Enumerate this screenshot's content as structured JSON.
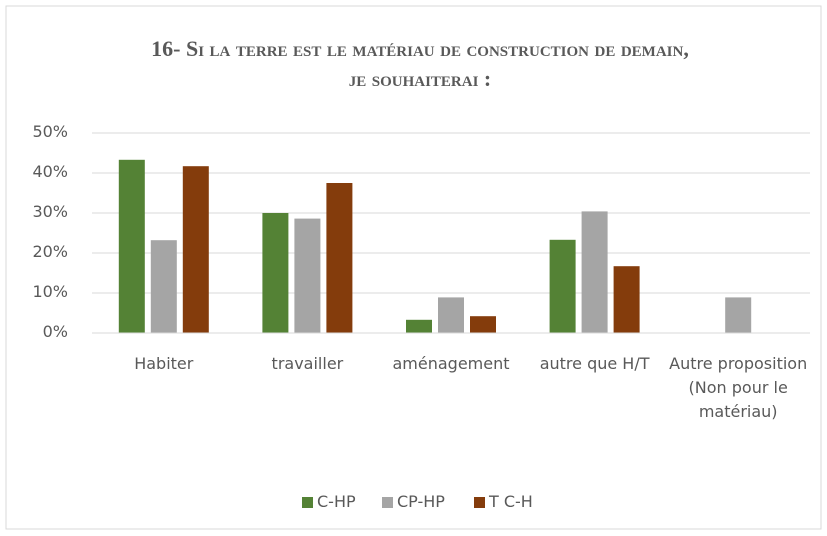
{
  "chart_data": {
    "type": "bar",
    "title": "16- Si la terre est le matériau de construction de demain, je souhaiterai :",
    "categories": [
      "Habiter",
      "travailler",
      "aménagement",
      "autre que H/T",
      "Autre proposition (Non pour le matériau)"
    ],
    "series": [
      {
        "name": "C-HP",
        "color": "#548235",
        "values": [
          43.3,
          30,
          3.3,
          23.3,
          null
        ]
      },
      {
        "name": "CP-HP",
        "color": "#a5a5a5",
        "values": [
          23.2,
          28.6,
          8.9,
          30.4,
          8.9
        ]
      },
      {
        "name": "T C-H",
        "color": "#843c0c",
        "values": [
          41.7,
          37.5,
          4.2,
          16.7,
          null
        ]
      }
    ],
    "ylim": [
      0,
      50
    ],
    "yticks": [
      {
        "value": 0,
        "label": "0%"
      },
      {
        "value": 10,
        "label": "10%"
      },
      {
        "value": 20,
        "label": "20%"
      },
      {
        "value": 30,
        "label": "30%"
      },
      {
        "value": 40,
        "label": "40%"
      },
      {
        "value": 50,
        "label": "50%"
      }
    ],
    "grid": true,
    "legend": "bottom"
  }
}
